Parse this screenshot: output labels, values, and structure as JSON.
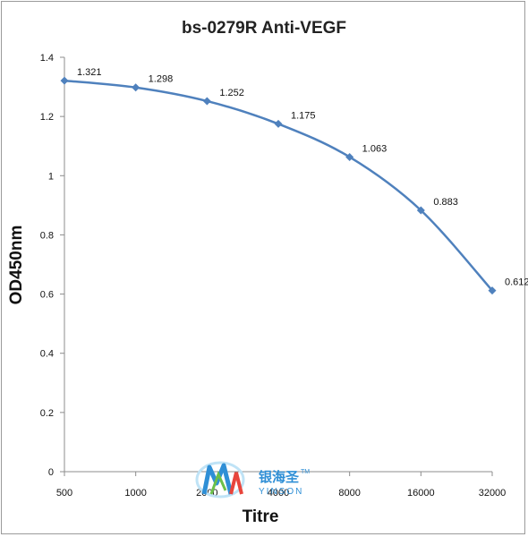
{
  "chart_data": {
    "type": "line",
    "title": "bs-0279R Anti-VEGF",
    "xlabel": "Titre",
    "ylabel": "OD450nm",
    "categories": [
      "500",
      "1000",
      "2000",
      "4000",
      "8000",
      "16000",
      "32000"
    ],
    "series": [
      {
        "values": [
          1.321,
          1.298,
          1.252,
          1.175,
          1.063,
          0.883,
          0.612
        ]
      }
    ],
    "data_labels": [
      "1.321",
      "1.298",
      "1.252",
      "1.175",
      "1.063",
      "0.883",
      "0.612"
    ],
    "ylim": [
      0,
      1.4
    ],
    "yticks": [
      "0",
      "0.2",
      "0.4",
      "0.6",
      "0.8",
      "1",
      "1.2",
      "1.4"
    ],
    "grid": false,
    "legend": "none",
    "colors": {
      "series": "#4f81bd",
      "axis": "#8c8c8c"
    }
  },
  "watermark": {
    "brand_cn": "银海圣",
    "brand_en": "YINSON",
    "trademark": "TM",
    "colors": {
      "blue": "#2f8fd6",
      "green": "#6cc04a",
      "red": "#e8453c"
    }
  }
}
